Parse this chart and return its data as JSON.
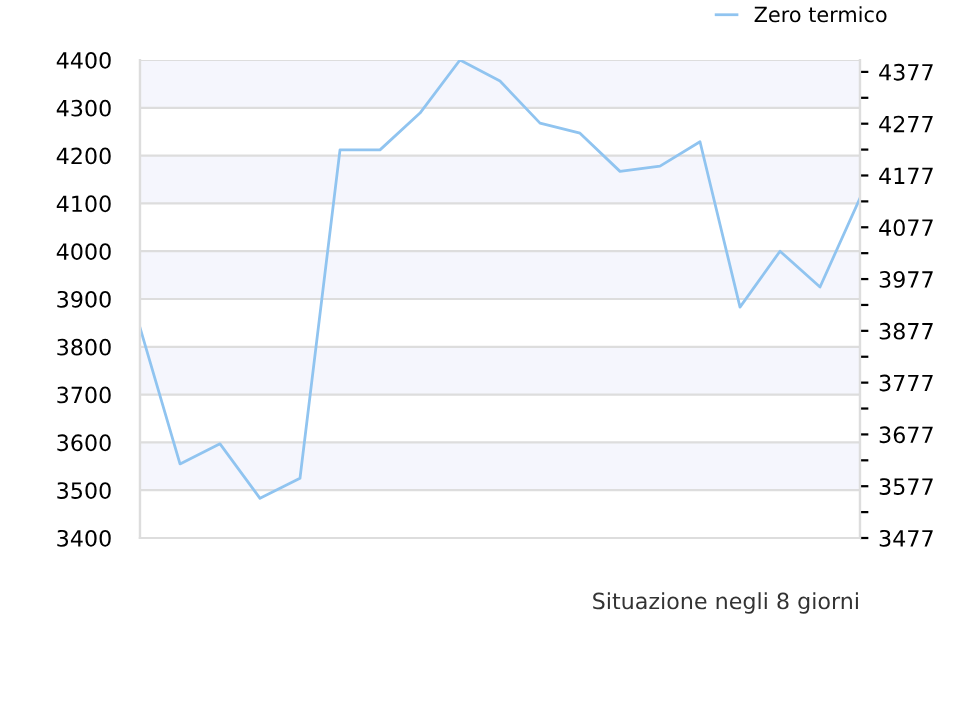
{
  "chart_data": {
    "type": "line",
    "xlabel": "Situazione negli 8 giorni",
    "categories": [
      null,
      null,
      null,
      null,
      null,
      null,
      null,
      null,
      null,
      null,
      null,
      null,
      null,
      null,
      null,
      null,
      null,
      null,
      null
    ],
    "series": [
      {
        "name": "Zero termico",
        "color": "#90c4f0",
        "values": [
          3840,
          3555,
          3597,
          3483,
          3525,
          4212,
          4212,
          4289,
          4400,
          4356,
          4268,
          4247,
          4167,
          4178,
          4229,
          3883,
          4000,
          3925,
          4111
        ]
      }
    ],
    "ylim": [
      3400,
      4400
    ],
    "yticks": [
      3400,
      3500,
      3600,
      3700,
      3800,
      3900,
      4000,
      4100,
      4200,
      4300,
      4400
    ],
    "y2lim": [
      3477,
      4400
    ],
    "y2ticks": [
      3477,
      {
        "value": 3527,
        "label": null
      },
      3577,
      {
        "value": 3627,
        "label": null
      },
      3677,
      {
        "value": 3727,
        "label": null
      },
      3777,
      {
        "value": 3827,
        "label": null
      },
      3877,
      {
        "value": 3927,
        "label": null
      },
      3977,
      {
        "value": 4027,
        "label": null
      },
      4077,
      {
        "value": 4127,
        "label": null
      },
      4177,
      {
        "value": 4227,
        "label": null
      },
      4277,
      {
        "value": 4327,
        "label": null
      },
      4377
    ],
    "bands": [
      {
        "axis": "y",
        "from": 3500,
        "to": 3600,
        "color": "#f5f6fd"
      },
      {
        "axis": "y",
        "from": 3700,
        "to": 3800,
        "color": "#f5f6fd"
      },
      {
        "axis": "y",
        "from": 3900,
        "to": 4000,
        "color": "#f5f6fd"
      },
      {
        "axis": "y",
        "from": 4100,
        "to": 4200,
        "color": "#f5f6fd"
      },
      {
        "axis": "y",
        "from": 4300,
        "to": 4400,
        "color": "#f5f6fd"
      }
    ],
    "grid": "y",
    "legend": "top right",
    "marker": "none",
    "line_style": "solid"
  }
}
